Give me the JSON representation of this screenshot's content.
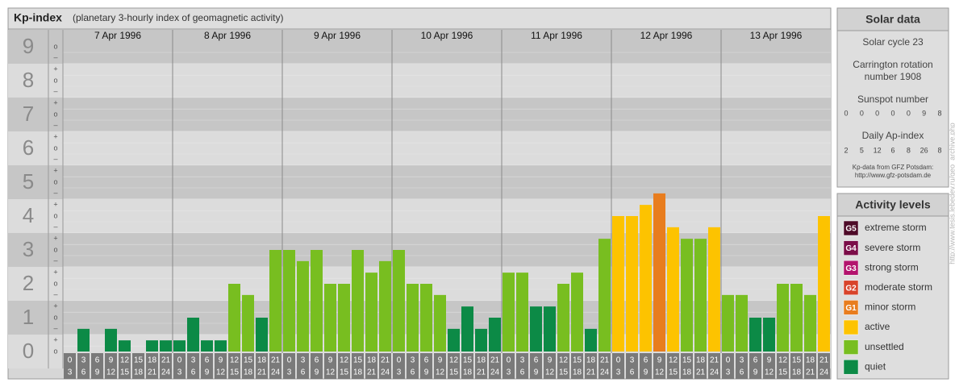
{
  "chart_data": {
    "type": "bar",
    "title": "Kp-index",
    "subtitle": "(planetary 3-hourly index of geomagnetic activity)",
    "categories": [
      "7 Apr 1996",
      "8 Apr 1996",
      "9 Apr 1996",
      "10 Apr 1996",
      "11 Apr 1996",
      "12 Apr 1996",
      "13 Apr 1996"
    ],
    "hour_labels": [
      {
        "from": 0,
        "to": 3
      },
      {
        "from": 3,
        "to": 6
      },
      {
        "from": 6,
        "to": 9
      },
      {
        "from": 9,
        "to": 12
      },
      {
        "from": 12,
        "to": 15
      },
      {
        "from": 15,
        "to": 18
      },
      {
        "from": 18,
        "to": 21
      },
      {
        "from": 21,
        "to": 24
      }
    ],
    "values": [
      [
        0,
        0.67,
        0,
        0.67,
        0.33,
        0,
        0.33,
        0.33
      ],
      [
        0.33,
        1,
        0.33,
        0.33,
        2,
        1.67,
        1,
        3
      ],
      [
        3,
        2.67,
        3,
        2,
        2,
        3,
        2.33,
        2.67
      ],
      [
        3,
        2,
        2,
        1.67,
        0.67,
        1.33,
        0.67,
        1
      ],
      [
        2.33,
        2.33,
        1.33,
        1.33,
        2,
        2.33,
        0.67,
        3.33
      ],
      [
        4,
        4,
        4.33,
        4.67,
        3.67,
        3.33,
        3.33,
        3.67
      ],
      [
        1.67,
        1.67,
        1,
        1,
        2,
        2,
        1.67,
        4
      ]
    ],
    "colors": [
      [
        "#0c8a46",
        "#0c8a46",
        "#0c8a46",
        "#0c8a46",
        "#0c8a46",
        "#0c8a46",
        "#0c8a46",
        "#0c8a46"
      ],
      [
        "#0c8a46",
        "#0c8a46",
        "#0c8a46",
        "#0c8a46",
        "#78be20",
        "#78be20",
        "#0c8a46",
        "#78be20"
      ],
      [
        "#78be20",
        "#78be20",
        "#78be20",
        "#78be20",
        "#78be20",
        "#78be20",
        "#78be20",
        "#78be20"
      ],
      [
        "#78be20",
        "#78be20",
        "#78be20",
        "#78be20",
        "#0c8a46",
        "#0c8a46",
        "#0c8a46",
        "#0c8a46"
      ],
      [
        "#78be20",
        "#78be20",
        "#0c8a46",
        "#0c8a46",
        "#78be20",
        "#78be20",
        "#0c8a46",
        "#78be20"
      ],
      [
        "#fdc300",
        "#fdc300",
        "#fdc300",
        "#e87d1e",
        "#fdc300",
        "#78be20",
        "#78be20",
        "#fdc300"
      ],
      [
        "#78be20",
        "#78be20",
        "#0c8a46",
        "#0c8a46",
        "#78be20",
        "#78be20",
        "#78be20",
        "#fdc300"
      ]
    ],
    "ylim": [
      0,
      9
    ],
    "yticks": [
      0,
      1,
      2,
      3,
      4,
      5,
      6,
      7,
      8,
      9
    ],
    "minor_yticks": [
      {
        "value": 9,
        "label": "o"
      },
      {
        "value": 8.67,
        "label": "–"
      },
      {
        "value": 8.33,
        "label": "+"
      },
      {
        "value": 8,
        "label": "o"
      },
      {
        "value": 7.67,
        "label": "–"
      },
      {
        "value": 7.33,
        "label": "+"
      },
      {
        "value": 7,
        "label": "o"
      },
      {
        "value": 6.67,
        "label": "–"
      },
      {
        "value": 6.33,
        "label": "+"
      },
      {
        "value": 6,
        "label": "o"
      },
      {
        "value": 5.67,
        "label": "–"
      },
      {
        "value": 5.33,
        "label": "+"
      },
      {
        "value": 5,
        "label": "o"
      },
      {
        "value": 4.67,
        "label": "–"
      },
      {
        "value": 4.33,
        "label": "+"
      },
      {
        "value": 4,
        "label": "o"
      },
      {
        "value": 3.67,
        "label": "–"
      },
      {
        "value": 3.33,
        "label": "+"
      },
      {
        "value": 3,
        "label": "o"
      },
      {
        "value": 2.67,
        "label": "–"
      },
      {
        "value": 2.33,
        "label": "+"
      },
      {
        "value": 2,
        "label": "o"
      },
      {
        "value": 1.67,
        "label": "–"
      },
      {
        "value": 1.33,
        "label": "+"
      },
      {
        "value": 1,
        "label": "o"
      },
      {
        "value": 0.67,
        "label": "–"
      },
      {
        "value": 0.33,
        "label": "+"
      },
      {
        "value": 0,
        "label": "o"
      }
    ],
    "grid": true
  },
  "solar_data": {
    "title": "Solar data",
    "solar_cycle": "Solar cycle 23",
    "carrington": [
      "Carrington rotation",
      "number 1908"
    ],
    "sunspot_title": "Sunspot number",
    "sunspot_numbers": [
      0,
      0,
      0,
      0,
      0,
      9,
      8
    ],
    "ap_title": "Daily Ap-index",
    "ap_values": [
      2,
      5,
      12,
      6,
      8,
      26,
      8
    ],
    "source": [
      "Kp-data from GFZ Potsdam:",
      "http://www.gfz-potsdam.de"
    ]
  },
  "activity_levels": {
    "title": "Activity levels",
    "items": [
      {
        "badge": "G5",
        "label": "extreme storm",
        "color": "#4e0b28"
      },
      {
        "badge": "G4",
        "label": "severe storm",
        "color": "#7b0d48"
      },
      {
        "badge": "G3",
        "label": "strong storm",
        "color": "#b3136d"
      },
      {
        "badge": "G2",
        "label": "moderate storm",
        "color": "#d8432a"
      },
      {
        "badge": "G1",
        "label": "minor storm",
        "color": "#e87d1e"
      },
      {
        "label": "active",
        "color": "#fdc300"
      },
      {
        "label": "unsettled",
        "color": "#78be20"
      },
      {
        "label": "quiet",
        "color": "#0c8a46"
      }
    ]
  },
  "side_url": "http://www.tesis.lebedev.ru/geo_archive.php"
}
